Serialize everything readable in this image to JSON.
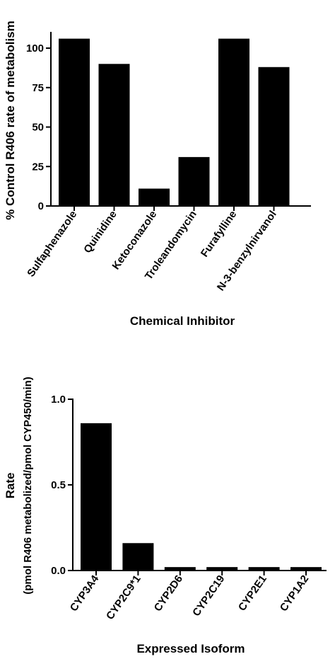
{
  "chart_data": [
    {
      "type": "bar",
      "categories": [
        "Sulfaphenazole",
        "Quinidine",
        "Ketoconazole",
        "Troleandomycin",
        "Furafylline",
        "N-3-benzylnirvanol"
      ],
      "values": [
        106,
        90,
        11,
        31,
        106,
        88
      ],
      "ylabel": "% Control R406 rate of metabolism",
      "xlabel": "Chemical Inhibitor",
      "ylim": [
        0,
        115
      ],
      "yticks": [
        0,
        25,
        50,
        75,
        100
      ],
      "color": "#000000"
    },
    {
      "type": "bar",
      "categories": [
        "CYP3A4",
        "CYP2C9*1",
        "CYP2D6",
        "CYP2C19",
        "CYP2E1",
        "CYP1A2"
      ],
      "values": [
        0.86,
        0.16,
        0.02,
        0.02,
        0.02,
        0.02
      ],
      "ylabel": "Rate",
      "ylabel_sub": "(pmol R406 metabolized/pmol CYP450/min)",
      "xlabel": "Expressed Isoform",
      "ylim": [
        0,
        1.0
      ],
      "yticks": [
        "0.0",
        "0.5",
        "1.0"
      ],
      "color": "#000000"
    }
  ]
}
